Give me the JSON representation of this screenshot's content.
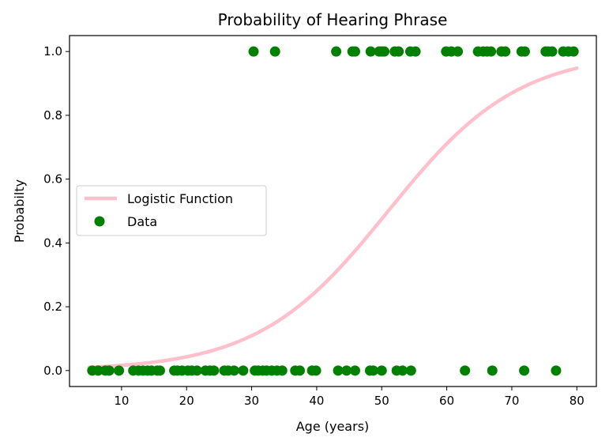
{
  "chart_data": {
    "type": "scatter",
    "title": "Probability of Hearing Phrase",
    "xlabel": "Age (years)",
    "ylabel": "Probabilty",
    "xlim": [
      2,
      83
    ],
    "ylim": [
      -0.05,
      1.05
    ],
    "xticks": [
      10,
      20,
      30,
      40,
      50,
      60,
      70,
      80
    ],
    "yticks": [
      0.0,
      0.2,
      0.4,
      0.6,
      0.8,
      1.0
    ],
    "xtick_labels": [
      "10",
      "20",
      "30",
      "40",
      "50",
      "60",
      "70",
      "80"
    ],
    "ytick_labels": [
      "0.0",
      "0.2",
      "0.4",
      "0.6",
      "0.8",
      "1.0"
    ],
    "grid": false,
    "legend_position": "center-left",
    "series": [
      {
        "name": "Logistic Function",
        "kind": "line",
        "color": "#ffc0cb",
        "logistic": {
          "midpoint": 51,
          "slope": 0.1
        },
        "x_range": [
          5,
          80
        ]
      },
      {
        "name": "Data",
        "kind": "scatter",
        "color": "#008000",
        "points": [
          [
            30.3,
            1
          ],
          [
            33.6,
            1
          ],
          [
            43.0,
            1
          ],
          [
            45.5,
            1
          ],
          [
            45.9,
            1
          ],
          [
            48.3,
            1
          ],
          [
            49.6,
            1
          ],
          [
            50.0,
            1
          ],
          [
            50.4,
            1
          ],
          [
            52.0,
            1
          ],
          [
            52.6,
            1
          ],
          [
            54.4,
            1
          ],
          [
            55.2,
            1
          ],
          [
            59.9,
            1
          ],
          [
            60.7,
            1
          ],
          [
            61.7,
            1
          ],
          [
            64.8,
            1
          ],
          [
            65.6,
            1
          ],
          [
            66.2,
            1
          ],
          [
            66.8,
            1
          ],
          [
            68.4,
            1
          ],
          [
            69.0,
            1
          ],
          [
            71.5,
            1
          ],
          [
            72.0,
            1
          ],
          [
            75.2,
            1
          ],
          [
            75.6,
            1
          ],
          [
            76.2,
            1
          ],
          [
            77.9,
            1
          ],
          [
            78.7,
            1
          ],
          [
            79.5,
            1
          ],
          [
            5.5,
            0
          ],
          [
            6.4,
            0
          ],
          [
            7.5,
            0
          ],
          [
            8.1,
            0
          ],
          [
            9.6,
            0
          ],
          [
            11.8,
            0
          ],
          [
            12.6,
            0
          ],
          [
            13.3,
            0
          ],
          [
            14.0,
            0
          ],
          [
            14.6,
            0
          ],
          [
            15.5,
            0
          ],
          [
            15.9,
            0
          ],
          [
            18.1,
            0
          ],
          [
            18.6,
            0
          ],
          [
            19.3,
            0
          ],
          [
            20.2,
            0
          ],
          [
            20.8,
            0
          ],
          [
            21.6,
            0
          ],
          [
            22.9,
            0
          ],
          [
            23.6,
            0
          ],
          [
            24.2,
            0
          ],
          [
            25.8,
            0
          ],
          [
            26.4,
            0
          ],
          [
            27.3,
            0
          ],
          [
            28.7,
            0
          ],
          [
            30.5,
            0
          ],
          [
            31.0,
            0
          ],
          [
            31.7,
            0
          ],
          [
            32.3,
            0
          ],
          [
            33.1,
            0
          ],
          [
            33.9,
            0
          ],
          [
            34.7,
            0
          ],
          [
            36.7,
            0
          ],
          [
            37.4,
            0
          ],
          [
            39.3,
            0
          ],
          [
            39.9,
            0
          ],
          [
            43.3,
            0
          ],
          [
            44.6,
            0
          ],
          [
            45.9,
            0
          ],
          [
            48.2,
            0
          ],
          [
            48.7,
            0
          ],
          [
            50.0,
            0
          ],
          [
            52.3,
            0
          ],
          [
            53.2,
            0
          ],
          [
            54.5,
            0
          ],
          [
            62.8,
            0
          ],
          [
            67.0,
            0
          ],
          [
            71.9,
            0
          ],
          [
            76.8,
            0
          ]
        ]
      }
    ]
  }
}
